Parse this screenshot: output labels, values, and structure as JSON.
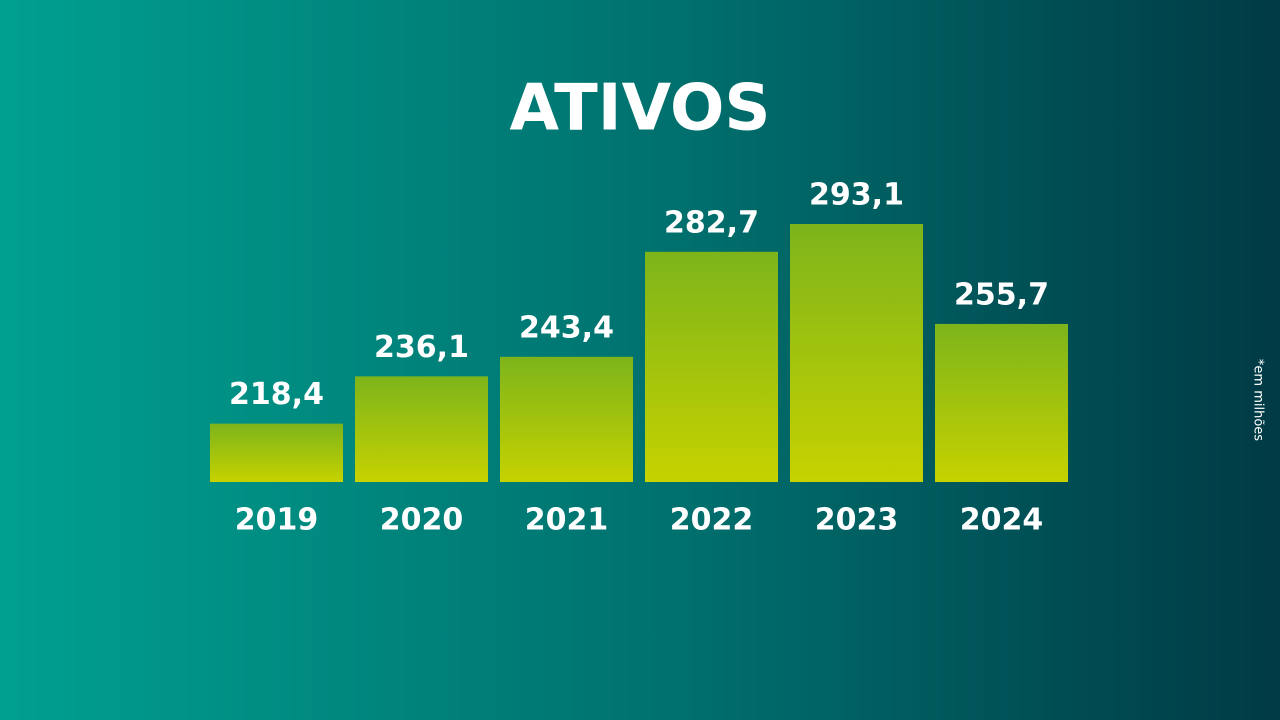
{
  "chart_data": {
    "type": "bar",
    "title": "ATIVOS",
    "categories": [
      "2019",
      "2020",
      "2021",
      "2022",
      "2023",
      "2024"
    ],
    "values": [
      218.4,
      236.1,
      243.4,
      282.7,
      293.1,
      255.7
    ],
    "value_labels": [
      "218,4",
      "236,1",
      "243,4",
      "282,7",
      "293,1",
      "255,7"
    ],
    "note": "*em milhões"
  }
}
